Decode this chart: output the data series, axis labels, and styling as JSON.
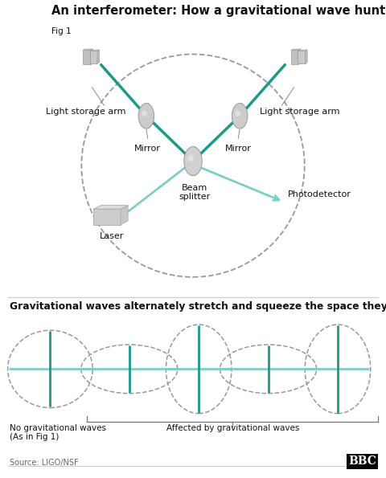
{
  "title": "An interferometer: How a gravitational wave hunter works",
  "title_fontsize": 10.5,
  "fig1_label": "Fig 1",
  "teal_dark": "#1a9b8a",
  "teal_light": "#7ecec4",
  "gray_component": "#c8c8c8",
  "gray_dark": "#777777",
  "dashed_color": "#999999",
  "black": "#111111",
  "bg_color": "#ffffff",
  "label_fontsize": 8,
  "small_fontsize": 7.5,
  "source_text": "Source: LIGO/NSF",
  "bbc_text": "BBC",
  "section2_title": "Gravitational waves alternately stretch and squeeze the space they pass through",
  "labels": {
    "light_storage_arm_left": "Light storage arm",
    "light_storage_arm_right": "Light storage arm",
    "mirror_left": "Mirror",
    "mirror_right": "Mirror",
    "beam_splitter": "Beam\nsplitter",
    "photodetector": "Photodetector",
    "laser": "Laser"
  },
  "bottom_labels": {
    "no_grav": "No gravitational waves\n(As in Fig 1)",
    "affected": "Affected by gravitational waves"
  }
}
